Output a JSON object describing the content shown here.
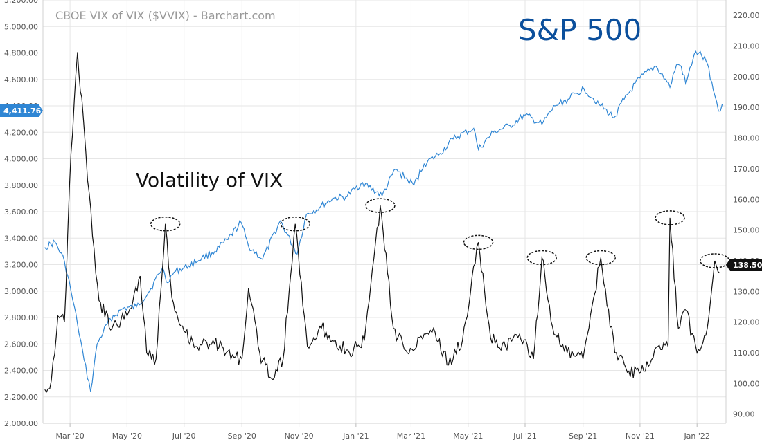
{
  "chart_data": {
    "type": "line",
    "title": "CBOE VIX of VIX ($VVIX) - Barchart.com",
    "annotations": [
      "S&P 500",
      "Volatility of VIX"
    ],
    "x_ticks": [
      "Mar '20",
      "May '20",
      "Jul '20",
      "Sep '20",
      "Nov '20",
      "Jan '21",
      "Mar '21",
      "May '21",
      "Jul '21",
      "Sep '21",
      "Nov '21",
      "Jan '22"
    ],
    "left_axis": {
      "ticks": [
        "2,000.00",
        "2,200.00",
        "2,400.00",
        "2,600.00",
        "2,800.00",
        "3,000.00",
        "3,200.00",
        "3,400.00",
        "3,600.00",
        "3,800.00",
        "4,000.00",
        "4,200.00",
        "4,400.00",
        "4,600.00",
        "4,800.00",
        "5,000.00",
        "5,200.00"
      ],
      "range": [
        2000,
        5200
      ]
    },
    "right_axis": {
      "ticks": [
        "90.00",
        "100.00",
        "110.00",
        "120.00",
        "130.00",
        "140.00",
        "150.00",
        "160.00",
        "170.00",
        "180.00",
        "190.00",
        "200.00",
        "210.00",
        "220.00"
      ],
      "range": [
        87,
        225
      ]
    },
    "last_values": {
      "sp500": "4,411.76",
      "vvix": "138.50"
    },
    "series": [
      {
        "name": "S&P 500",
        "axis": "left",
        "color": "#2f86d4",
        "x": [
          "2020-02-03",
          "2020-02-14",
          "2020-02-24",
          "2020-03-02",
          "2020-03-09",
          "2020-03-16",
          "2020-03-23",
          "2020-03-30",
          "2020-04-13",
          "2020-04-27",
          "2020-05-11",
          "2020-05-25",
          "2020-06-08",
          "2020-06-12",
          "2020-06-22",
          "2020-07-06",
          "2020-07-20",
          "2020-08-03",
          "2020-08-17",
          "2020-08-31",
          "2020-09-08",
          "2020-09-23",
          "2020-10-12",
          "2020-10-30",
          "2020-11-09",
          "2020-11-23",
          "2020-12-07",
          "2020-12-21",
          "2021-01-08",
          "2021-01-29",
          "2021-02-12",
          "2021-03-04",
          "2021-03-15",
          "2021-04-01",
          "2021-04-15",
          "2021-05-07",
          "2021-05-12",
          "2021-05-28",
          "2021-06-15",
          "2021-07-01",
          "2021-07-19",
          "2021-08-02",
          "2021-08-16",
          "2021-09-02",
          "2021-09-20",
          "2021-10-04",
          "2021-10-15",
          "2021-11-01",
          "2021-11-18",
          "2021-11-30",
          "2021-12-03",
          "2021-12-10",
          "2021-12-15",
          "2021-12-20",
          "2021-12-29",
          "2022-01-03",
          "2022-01-12",
          "2022-01-20",
          "2022-01-24",
          "2022-01-28"
        ],
        "values": [
          3330,
          3370,
          3225,
          3000,
          2750,
          2480,
          2240,
          2600,
          2790,
          2870,
          2880,
          3000,
          3180,
          3070,
          3150,
          3190,
          3250,
          3300,
          3390,
          3520,
          3340,
          3240,
          3530,
          3280,
          3580,
          3630,
          3700,
          3710,
          3820,
          3720,
          3920,
          3800,
          3960,
          4040,
          4150,
          4230,
          4070,
          4200,
          4250,
          4330,
          4260,
          4400,
          4450,
          4530,
          4400,
          4310,
          4450,
          4610,
          4700,
          4580,
          4540,
          4710,
          4700,
          4560,
          4790,
          4800,
          4720,
          4480,
          4360,
          4412
        ]
      },
      {
        "name": "Volatility of VIX",
        "axis": "right",
        "color": "#111111",
        "x": [
          "2020-02-03",
          "2020-02-10",
          "2020-02-17",
          "2020-02-24",
          "2020-03-02",
          "2020-03-09",
          "2020-03-18",
          "2020-03-25",
          "2020-04-01",
          "2020-04-15",
          "2020-05-01",
          "2020-05-15",
          "2020-05-22",
          "2020-06-01",
          "2020-06-11",
          "2020-06-18",
          "2020-07-01",
          "2020-07-15",
          "2020-08-01",
          "2020-08-15",
          "2020-09-01",
          "2020-09-08",
          "2020-09-20",
          "2020-10-01",
          "2020-10-15",
          "2020-10-28",
          "2020-11-10",
          "2020-11-25",
          "2020-12-10",
          "2020-12-25",
          "2021-01-10",
          "2021-01-27",
          "2021-02-10",
          "2021-02-25",
          "2021-03-10",
          "2021-03-25",
          "2021-04-10",
          "2021-04-25",
          "2021-05-12",
          "2021-05-25",
          "2021-06-10",
          "2021-06-25",
          "2021-07-10",
          "2021-07-19",
          "2021-08-01",
          "2021-08-15",
          "2021-09-01",
          "2021-09-20",
          "2021-10-05",
          "2021-10-20",
          "2021-11-05",
          "2021-11-20",
          "2021-12-01",
          "2021-12-03",
          "2021-12-12",
          "2021-12-20",
          "2022-01-01",
          "2022-01-12",
          "2022-01-20",
          "2022-01-25"
        ],
        "values": [
          98,
          101,
          122,
          120,
          175,
          208,
          175,
          148,
          127,
          118,
          122,
          135,
          110,
          108,
          152,
          128,
          117,
          112,
          114,
          110,
          108,
          131,
          110,
          102,
          108,
          152,
          112,
          118,
          114,
          110,
          114,
          158,
          118,
          110,
          115,
          118,
          106,
          114,
          146,
          115,
          112,
          116,
          108,
          141,
          116,
          110,
          108,
          141,
          110,
          104,
          104,
          112,
          112,
          154,
          118,
          124,
          110,
          118,
          140,
          136
        ]
      }
    ],
    "highlighted_spikes": [
      "2020-06-11",
      "2020-10-28",
      "2021-01-27",
      "2021-05-12",
      "2021-07-19",
      "2021-09-20",
      "2021-12-03",
      "2022-01-20"
    ]
  }
}
